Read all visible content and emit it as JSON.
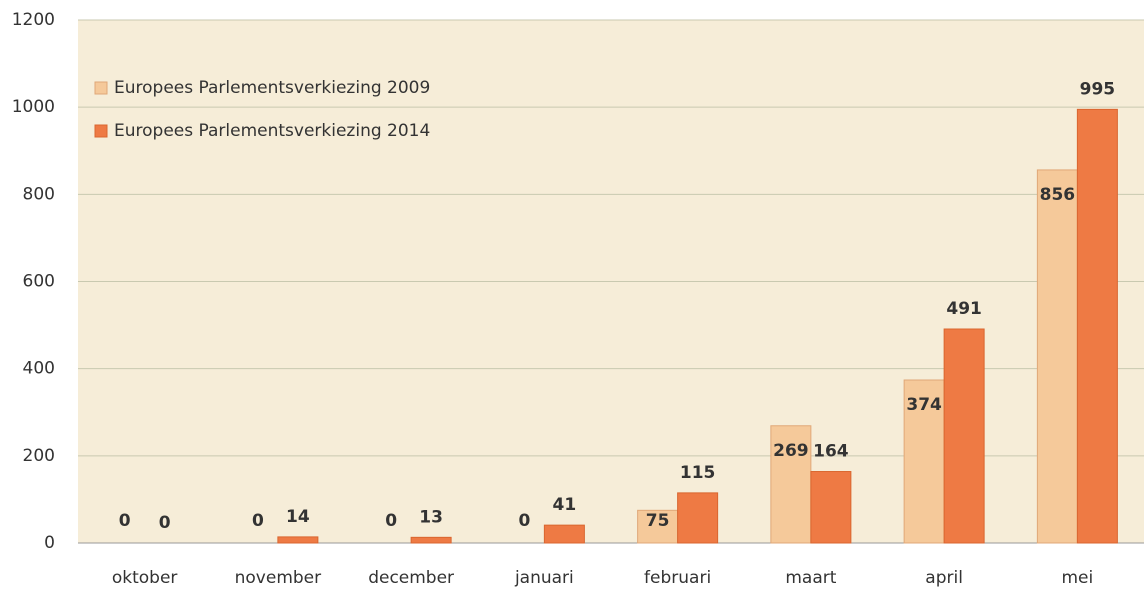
{
  "chart_data": {
    "type": "bar",
    "categories": [
      "oktober",
      "november",
      "december",
      "januari",
      "februari",
      "maart",
      "april",
      "mei"
    ],
    "series": [
      {
        "name": "Europees Parlementsverkiezing 2009",
        "color": "#f5c99a",
        "values": [
          0,
          0,
          0,
          0,
          75,
          269,
          374,
          856
        ]
      },
      {
        "name": "Europees Parlementsverkiezing 2014",
        "color": "#ee7a44",
        "values": [
          0,
          14,
          13,
          41,
          115,
          164,
          491,
          995
        ]
      }
    ],
    "ylim": [
      0,
      1200
    ],
    "yticks": [
      0,
      200,
      400,
      600,
      800,
      1000,
      1200
    ],
    "grid": true,
    "legend": "top-left"
  }
}
